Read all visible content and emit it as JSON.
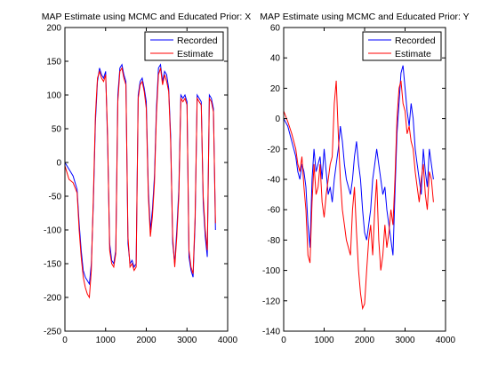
{
  "colors": {
    "recorded": "#0000ff",
    "estimate": "#ff0000",
    "axes": "#000000",
    "background": "#ffffff"
  },
  "chart_data": [
    {
      "type": "line",
      "title": "MAP Estimate using MCMC and Educated Prior: X",
      "xlabel": "",
      "ylabel": "",
      "xlim": [
        0,
        4000
      ],
      "ylim": [
        -250,
        200
      ],
      "xticks": [
        0,
        1000,
        2000,
        3000,
        4000
      ],
      "yticks": [
        -250,
        -200,
        -150,
        -100,
        -50,
        0,
        50,
        100,
        150,
        200
      ],
      "legend": {
        "position": "top-right",
        "entries": [
          "Recorded",
          "Estimate"
        ]
      },
      "grid": false,
      "series": [
        {
          "name": "Recorded",
          "x": [
            0,
            100,
            200,
            300,
            350,
            400,
            450,
            500,
            550,
            600,
            650,
            700,
            750,
            800,
            850,
            900,
            950,
            1000,
            1050,
            1100,
            1150,
            1200,
            1250,
            1300,
            1350,
            1400,
            1450,
            1500,
            1550,
            1600,
            1650,
            1700,
            1750,
            1800,
            1850,
            1900,
            1950,
            2000,
            2050,
            2100,
            2150,
            2200,
            2250,
            2300,
            2350,
            2400,
            2450,
            2500,
            2550,
            2600,
            2650,
            2700,
            2750,
            2800,
            2850,
            2900,
            2950,
            3000,
            3050,
            3100,
            3150,
            3200,
            3250,
            3300,
            3350,
            3400,
            3450,
            3500,
            3550,
            3600,
            3650,
            3700
          ],
          "y": [
            0,
            -10,
            -20,
            -40,
            -90,
            -130,
            -160,
            -170,
            -175,
            -180,
            -150,
            -60,
            60,
            120,
            140,
            130,
            125,
            135,
            30,
            -120,
            -145,
            -150,
            -130,
            100,
            140,
            145,
            130,
            120,
            -120,
            -150,
            -145,
            -155,
            -150,
            100,
            120,
            125,
            110,
            90,
            -40,
            -100,
            -70,
            -20,
            80,
            140,
            145,
            120,
            135,
            130,
            110,
            40,
            -120,
            -150,
            -100,
            -40,
            100,
            95,
            100,
            90,
            -140,
            -160,
            -170,
            -90,
            100,
            95,
            90,
            -60,
            -110,
            -140,
            100,
            95,
            80,
            -100
          ]
        },
        {
          "name": "Estimate",
          "x": [
            0,
            100,
            200,
            300,
            350,
            400,
            450,
            500,
            550,
            600,
            650,
            700,
            750,
            800,
            850,
            900,
            950,
            1000,
            1050,
            1100,
            1150,
            1200,
            1250,
            1300,
            1350,
            1400,
            1450,
            1500,
            1550,
            1600,
            1650,
            1700,
            1750,
            1800,
            1850,
            1900,
            1950,
            2000,
            2050,
            2100,
            2150,
            2200,
            2250,
            2300,
            2350,
            2400,
            2450,
            2500,
            2550,
            2600,
            2650,
            2700,
            2750,
            2800,
            2850,
            2900,
            2950,
            3000,
            3050,
            3100,
            3150,
            3200,
            3250,
            3300,
            3350,
            3400,
            3450,
            3500,
            3550,
            3600,
            3650,
            3700
          ],
          "y": [
            -5,
            -25,
            -30,
            -45,
            -100,
            -140,
            -170,
            -185,
            -195,
            -200,
            -160,
            -50,
            70,
            125,
            135,
            125,
            120,
            130,
            40,
            -130,
            -150,
            -155,
            -135,
            90,
            135,
            140,
            125,
            115,
            -110,
            -155,
            -150,
            -160,
            -155,
            95,
            115,
            120,
            105,
            80,
            -50,
            -110,
            -80,
            -30,
            70,
            130,
            140,
            115,
            130,
            120,
            105,
            30,
            -110,
            -155,
            -110,
            -50,
            95,
            90,
            95,
            85,
            -130,
            -155,
            -165,
            -80,
            95,
            90,
            85,
            -50,
            -100,
            -130,
            95,
            90,
            75,
            -90
          ]
        }
      ]
    },
    {
      "type": "line",
      "title": "MAP Estimate using MCMC and Educated Prior: Y",
      "xlabel": "",
      "ylabel": "",
      "xlim": [
        0,
        4000
      ],
      "ylim": [
        -140,
        60
      ],
      "xticks": [
        0,
        1000,
        2000,
        3000,
        4000
      ],
      "yticks": [
        -140,
        -120,
        -100,
        -80,
        -60,
        -40,
        -20,
        0,
        20,
        40,
        60
      ],
      "legend": {
        "position": "top-right",
        "entries": [
          "Recorded",
          "Estimate"
        ]
      },
      "grid": false,
      "series": [
        {
          "name": "Recorded",
          "x": [
            0,
            100,
            200,
            300,
            350,
            400,
            450,
            500,
            550,
            600,
            650,
            700,
            750,
            800,
            850,
            900,
            950,
            1000,
            1050,
            1100,
            1150,
            1200,
            1250,
            1300,
            1350,
            1400,
            1450,
            1500,
            1550,
            1600,
            1650,
            1700,
            1750,
            1800,
            1850,
            1900,
            1950,
            2000,
            2050,
            2100,
            2150,
            2200,
            2250,
            2300,
            2350,
            2400,
            2450,
            2500,
            2550,
            2600,
            2650,
            2700,
            2750,
            2800,
            2850,
            2900,
            2950,
            3000,
            3050,
            3100,
            3150,
            3200,
            3250,
            3300,
            3350,
            3400,
            3450,
            3500,
            3550,
            3600,
            3650,
            3700
          ],
          "y": [
            0,
            -5,
            -15,
            -25,
            -35,
            -40,
            -30,
            -35,
            -45,
            -70,
            -85,
            -40,
            -20,
            -35,
            -30,
            -25,
            -40,
            -20,
            -35,
            -50,
            -45,
            -55,
            -40,
            -30,
            -20,
            -5,
            -15,
            -30,
            -40,
            -45,
            -50,
            -40,
            -25,
            -15,
            -30,
            -40,
            -60,
            -75,
            -80,
            -70,
            -60,
            -40,
            -30,
            -20,
            -30,
            -40,
            -50,
            -45,
            -60,
            -70,
            -80,
            -90,
            -50,
            -10,
            10,
            30,
            35,
            20,
            5,
            -5,
            10,
            0,
            -20,
            -30,
            -40,
            -50,
            -20,
            -35,
            -45,
            -20,
            -30,
            -40
          ]
        },
        {
          "name": "Estimate",
          "x": [
            0,
            100,
            200,
            300,
            350,
            400,
            450,
            500,
            550,
            600,
            650,
            700,
            750,
            800,
            850,
            900,
            950,
            1000,
            1050,
            1100,
            1150,
            1200,
            1250,
            1300,
            1350,
            1400,
            1450,
            1500,
            1550,
            1600,
            1650,
            1700,
            1750,
            1800,
            1850,
            1900,
            1950,
            2000,
            2050,
            2100,
            2150,
            2200,
            2250,
            2300,
            2350,
            2400,
            2450,
            2500,
            2550,
            2600,
            2650,
            2700,
            2750,
            2800,
            2850,
            2900,
            2950,
            3000,
            3050,
            3100,
            3150,
            3200,
            3250,
            3300,
            3350,
            3400,
            3450,
            3500,
            3550,
            3600,
            3650,
            3700
          ],
          "y": [
            5,
            -2,
            -10,
            -20,
            -30,
            -35,
            -25,
            -45,
            -60,
            -90,
            -95,
            -55,
            -30,
            -50,
            -45,
            -30,
            -55,
            -65,
            -50,
            -40,
            -30,
            -25,
            10,
            25,
            -10,
            -40,
            -60,
            -70,
            -80,
            -85,
            -90,
            -60,
            -45,
            -75,
            -100,
            -115,
            -125,
            -122,
            -100,
            -80,
            -70,
            -90,
            -60,
            -40,
            -80,
            -100,
            -90,
            -70,
            -85,
            -75,
            -60,
            -70,
            -40,
            0,
            20,
            25,
            10,
            5,
            -10,
            -5,
            -15,
            -20,
            -35,
            -45,
            -55,
            -40,
            -30,
            -50,
            -60,
            -35,
            -40,
            -55
          ]
        }
      ]
    }
  ]
}
